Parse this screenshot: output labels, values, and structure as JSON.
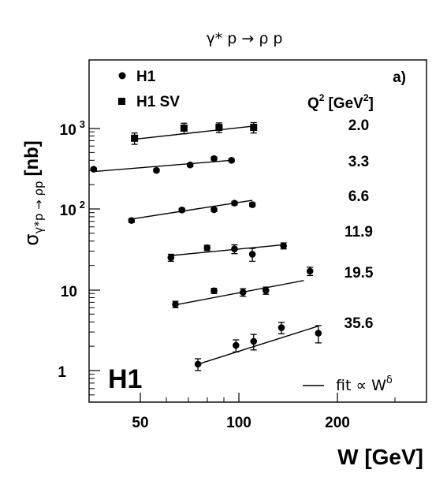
{
  "chart_data": {
    "type": "scatter",
    "title": "γ* p → ρ p",
    "xlabel": "W [GeV]",
    "ylabel": "σ",
    "ylabel_sub": "γ*p → ρp",
    "ylabel_unit": "[nb]",
    "x_scale": "log",
    "y_scale": "log",
    "xlim": [
      35,
      290
    ],
    "ylim": [
      0.42,
      10000
    ],
    "x_ticks": [
      "50",
      "100",
      "200"
    ],
    "y_ticks": [
      {
        "base": "10",
        "exp": "3"
      },
      {
        "base": "10",
        "exp": "2"
      },
      {
        "base": "10",
        "exp": ""
      },
      {
        "base": "1",
        "exp": ""
      }
    ],
    "panel_label": "a)",
    "logo": "H1",
    "q2_header": "Q",
    "q2_header_sup": "2",
    "q2_header_unit": "[GeV",
    "q2_header_unit_sup": "2",
    "q2_header_close": "]",
    "q2_values": [
      "2.0",
      "3.3",
      "6.6",
      "11.9",
      "19.5",
      "35.6"
    ],
    "legend": [
      {
        "label": "H1",
        "marker": "circle"
      },
      {
        "label": "H1 SV",
        "marker": "square"
      }
    ],
    "fit_legend": {
      "text": "fit ∝ W",
      "sup": "δ"
    },
    "series": [
      {
        "q2": "2.0",
        "marker": "square",
        "points": [
          [
            48,
            750,
            120
          ],
          [
            68,
            1000,
            150
          ],
          [
            87,
            1020,
            140
          ],
          [
            111,
            1020,
            150
          ]
        ],
        "fit": [
          [
            48,
            730
          ],
          [
            111,
            1060
          ]
        ]
      },
      {
        "q2": "3.3",
        "marker": "circle",
        "points": [
          [
            36,
            310,
            12
          ],
          [
            56,
            300,
            12
          ],
          [
            71,
            350,
            15
          ],
          [
            84,
            420,
            18
          ],
          [
            95,
            400,
            16
          ]
        ],
        "fit": [
          [
            36,
            290
          ],
          [
            95,
            400
          ]
        ]
      },
      {
        "q2": "6.6",
        "marker": "circle",
        "points": [
          [
            47,
            72,
            4
          ],
          [
            67,
            97,
            5
          ],
          [
            84,
            98,
            5
          ],
          [
            97,
            118,
            6
          ],
          [
            110,
            113,
            6
          ]
        ],
        "fit": [
          [
            47,
            75
          ],
          [
            110,
            128
          ]
        ]
      },
      {
        "q2": "11.9",
        "marker": "circle",
        "points": [
          [
            62,
            25,
            2.5
          ],
          [
            80,
            33,
            2.5
          ],
          [
            97,
            32,
            4
          ],
          [
            110,
            27.5,
            5
          ],
          [
            137,
            35,
            3
          ]
        ],
        "fit": [
          [
            62,
            26.5
          ],
          [
            137,
            36
          ]
        ]
      },
      {
        "q2": "19.5",
        "marker": "circle",
        "points": [
          [
            64,
            6.6,
            0.6
          ],
          [
            84,
            9.7,
            0.7
          ],
          [
            103,
            9.3,
            1.0
          ],
          [
            121,
            9.8,
            1.0
          ],
          [
            165,
            17,
            2
          ]
        ],
        "fit": [
          [
            64,
            6.5
          ],
          [
            158,
            13
          ]
        ]
      },
      {
        "q2": "35.6",
        "marker": "circle",
        "points": [
          [
            75,
            1.2,
            0.2
          ],
          [
            98,
            2.05,
            0.35
          ],
          [
            111,
            2.3,
            0.5
          ],
          [
            135,
            3.4,
            0.55
          ],
          [
            175,
            2.9,
            0.7
          ]
        ],
        "fit": [
          [
            75,
            1.2
          ],
          [
            175,
            3.55
          ]
        ]
      }
    ]
  }
}
